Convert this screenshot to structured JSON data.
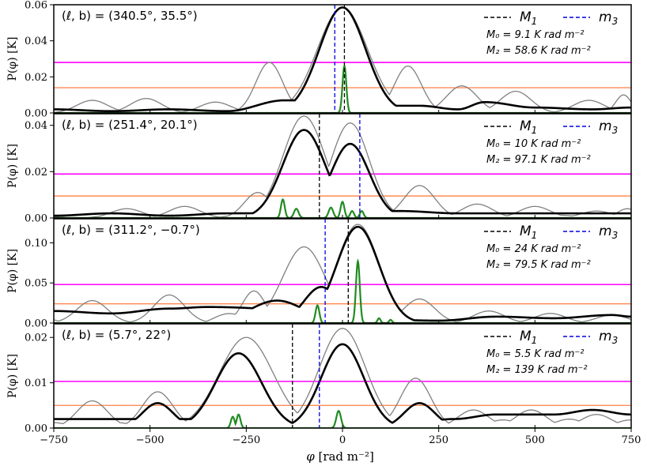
{
  "chart_data": {
    "type": "line",
    "xlabel": "φ [rad m⁻²]",
    "ylabel": "P(φ) [K]",
    "xlim": [
      -750,
      750
    ],
    "xticks": [
      -750,
      -500,
      -250,
      0,
      250,
      500,
      750
    ],
    "legend": {
      "m1_label": "M",
      "m1_sub": "1",
      "m3_label": "m",
      "m3_sub": "3"
    },
    "series_colors": {
      "black": "#000000",
      "gray": "#808080",
      "green": "#228B22",
      "magenta": "#ff00ff",
      "orange": "#ff8c55",
      "m1_line": "#000000",
      "m3_line": "#0000dd"
    },
    "panels": [
      {
        "label": "(ℓ, b) = (340.5°, 35.5°)",
        "ylim": [
          0,
          0.06
        ],
        "yticks": [
          0.0,
          0.02,
          0.04,
          0.06
        ],
        "ytick_labels": [
          "0.00",
          "0.02",
          "0.04",
          "0.06"
        ],
        "magenta": 0.028,
        "orange": 0.014,
        "M1": 5,
        "m3": -20,
        "M0_text": "M₀ = 9.1 K rad m⁻²",
        "M2_text": "M₂ = 58.6 K rad m⁻²",
        "clean_peaks": [
          [
            0,
            0.0585,
            60
          ]
        ],
        "floor": [
          [
            -750,
            0.002
          ],
          [
            -600,
            0.001
          ],
          [
            -450,
            0.002
          ],
          [
            -300,
            0.001
          ],
          [
            -150,
            0.007
          ],
          [
            -80,
            0.007
          ],
          [
            120,
            0.004
          ],
          [
            200,
            0.004
          ],
          [
            300,
            0.002
          ],
          [
            370,
            0.006
          ],
          [
            500,
            0.003
          ],
          [
            650,
            0.002
          ],
          [
            750,
            0.003
          ]
        ],
        "dirty_peaks": [
          [
            0,
            0.0585,
            65
          ],
          [
            -190,
            0.028,
            35
          ],
          [
            -510,
            0.008,
            40
          ],
          [
            -650,
            0.007,
            40
          ],
          [
            170,
            0.026,
            35
          ],
          [
            310,
            0.015,
            40
          ],
          [
            450,
            0.012,
            40
          ],
          [
            640,
            0.007,
            40
          ],
          [
            -330,
            0.006,
            40
          ],
          [
            730,
            0.01,
            20
          ]
        ],
        "green": [
          [
            5,
            0.026,
            5
          ]
        ]
      },
      {
        "label": "(ℓ, b) = (251.4°, 20.1°)",
        "ylim": [
          0,
          0.045
        ],
        "yticks": [
          0.0,
          0.02,
          0.04
        ],
        "ytick_labels": [
          "0.00",
          "0.02",
          "0.04"
        ],
        "magenta": 0.019,
        "orange": 0.0095,
        "M1": -60,
        "m3": 45,
        "M0_text": "M₀ = 10 K rad m⁻²",
        "M2_text": "M₂ = 97.1 K rad m⁻²",
        "clean_peaks": [
          [
            -100,
            0.038,
            55
          ],
          [
            20,
            0.032,
            50
          ]
        ],
        "floor": [
          [
            -750,
            0.001
          ],
          [
            -600,
            0.002
          ],
          [
            -450,
            0.001
          ],
          [
            -300,
            0.002
          ],
          [
            150,
            0.003
          ],
          [
            300,
            0.002
          ],
          [
            450,
            0.002
          ],
          [
            600,
            0.002
          ],
          [
            750,
            0.002
          ]
        ],
        "dirty_peaks": [
          [
            -100,
            0.044,
            55
          ],
          [
            20,
            0.041,
            50
          ],
          [
            -220,
            0.011,
            35
          ],
          [
            200,
            0.014,
            40
          ],
          [
            -410,
            0.005,
            40
          ],
          [
            -560,
            0.004,
            40
          ],
          [
            350,
            0.006,
            40
          ],
          [
            500,
            0.005,
            40
          ],
          [
            660,
            0.003,
            40
          ],
          [
            740,
            0.004,
            25
          ]
        ],
        "green": [
          [
            -155,
            0.008,
            5
          ],
          [
            -120,
            0.004,
            6
          ],
          [
            -30,
            0.0045,
            6
          ],
          [
            0,
            0.007,
            5
          ],
          [
            25,
            0.003,
            5
          ],
          [
            50,
            0.003,
            5
          ]
        ]
      },
      {
        "label": "(ℓ, b) = (311.2°, −0.7°)",
        "ylim": [
          0,
          0.13
        ],
        "yticks": [
          0.0,
          0.05,
          0.1
        ],
        "ytick_labels": [
          "0.00",
          "0.05",
          "0.10"
        ],
        "magenta": 0.048,
        "orange": 0.024,
        "M1": 15,
        "m3": -45,
        "M0_text": "M₀ = 24 K rad m⁻²",
        "M2_text": "M₂ = 79.5 K rad m⁻²",
        "clean_peaks": [
          [
            40,
            0.12,
            55
          ],
          [
            -55,
            0.045,
            45
          ],
          [
            -170,
            0.028,
            70
          ]
        ],
        "floor": [
          [
            -750,
            0.015
          ],
          [
            -600,
            0.012
          ],
          [
            -450,
            0.018
          ],
          [
            -350,
            0.02
          ],
          [
            250,
            0.003
          ],
          [
            400,
            0.008
          ],
          [
            550,
            0.006
          ],
          [
            700,
            0.01
          ],
          [
            750,
            0.008
          ]
        ],
        "dirty_peaks": [
          [
            40,
            0.123,
            55
          ],
          [
            -100,
            0.095,
            55
          ],
          [
            -650,
            0.028,
            40
          ],
          [
            -450,
            0.035,
            40
          ],
          [
            -230,
            0.04,
            30
          ],
          [
            200,
            0.03,
            40
          ],
          [
            380,
            0.015,
            40
          ],
          [
            540,
            0.012,
            40
          ],
          [
            700,
            0.01,
            40
          ]
        ],
        "green": [
          [
            40,
            0.077,
            5
          ],
          [
            -65,
            0.022,
            5
          ],
          [
            95,
            0.006,
            4
          ],
          [
            125,
            0.004,
            4
          ]
        ]
      },
      {
        "label": "(ℓ, b) = (5.7°, 22°)",
        "ylim": [
          0,
          0.023
        ],
        "yticks": [
          0.0,
          0.01,
          0.02
        ],
        "ytick_labels": [
          "0.00",
          "0.01",
          "0.02"
        ],
        "magenta": 0.0103,
        "orange": 0.005,
        "M1": -130,
        "m3": -60,
        "M0_text": "M₀ = 5.5 K rad m⁻²",
        "M2_text": "M₂ = 139 K rad m⁻²",
        "clean_peaks": [
          [
            -270,
            0.0165,
            60
          ],
          [
            0,
            0.0185,
            55
          ],
          [
            -480,
            0.0055,
            40
          ],
          [
            200,
            0.0055,
            40
          ]
        ],
        "floor": [
          [
            -750,
            0.002
          ],
          [
            -600,
            0.002
          ],
          [
            -380,
            0.002
          ],
          [
            110,
            0.0
          ],
          [
            290,
            0.002
          ],
          [
            400,
            0.003
          ],
          [
            550,
            0.003
          ],
          [
            650,
            0.004
          ],
          [
            750,
            0.003
          ]
        ],
        "dirty_peaks": [
          [
            -250,
            0.02,
            70
          ],
          [
            0,
            0.022,
            60
          ],
          [
            -480,
            0.008,
            40
          ],
          [
            -650,
            0.006,
            40
          ],
          [
            190,
            0.011,
            40
          ],
          [
            340,
            0.004,
            40
          ],
          [
            490,
            0.004,
            40
          ],
          [
            660,
            0.003,
            40
          ]
        ],
        "green": [
          [
            -285,
            0.0025,
            5
          ],
          [
            -270,
            0.003,
            5
          ],
          [
            -10,
            0.0038,
            6
          ]
        ]
      }
    ]
  }
}
